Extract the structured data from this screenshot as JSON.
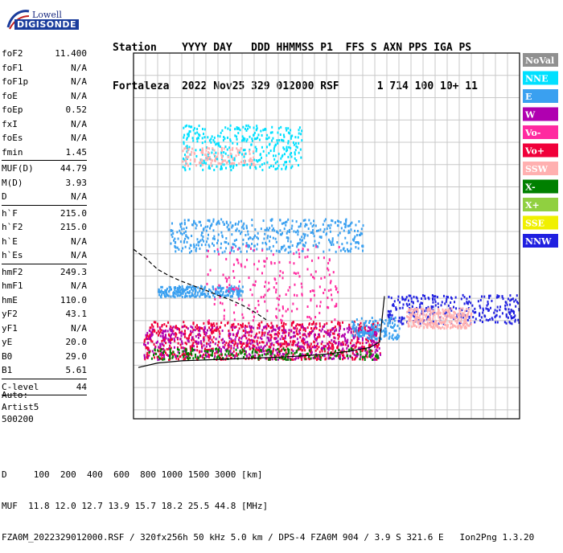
{
  "header": {
    "row1": "Station    YYYY DAY   DDD HHMMSS P1  FFS S AXN PPS IGA PS",
    "row2": "Fortaleza  2022 Nov25 329 012000 RSF      1 714 100 10+ 11"
  },
  "logo": {
    "top": "Lowell",
    "bottom": "DIGISONDE"
  },
  "params": [
    {
      "label": "foF2",
      "value": "11.400"
    },
    {
      "label": "foF1",
      "value": "N/A"
    },
    {
      "label": "foF1p",
      "value": "N/A"
    },
    {
      "label": "foE",
      "value": "N/A"
    },
    {
      "label": "foEp",
      "value": "0.52"
    },
    {
      "label": "fxI",
      "value": "N/A"
    },
    {
      "label": "foEs",
      "value": "N/A"
    },
    {
      "label": "fmin",
      "value": "1.45"
    },
    {
      "sep": true
    },
    {
      "label": "MUF(D)",
      "value": "44.79"
    },
    {
      "label": "M(D)",
      "value": "3.93"
    },
    {
      "label": "D",
      "value": "N/A"
    },
    {
      "sep": true
    },
    {
      "label": "h`F",
      "value": "215.0"
    },
    {
      "label": "h`F2",
      "value": "215.0"
    },
    {
      "label": "h`E",
      "value": "N/A"
    },
    {
      "label": "h`Es",
      "value": "N/A"
    },
    {
      "sep": true
    },
    {
      "label": "hmF2",
      "value": "249.3"
    },
    {
      "label": "hmF1",
      "value": "N/A"
    },
    {
      "label": "hmE",
      "value": "110.0"
    },
    {
      "label": "yF2",
      "value": "43.1"
    },
    {
      "label": "yF1",
      "value": "N/A"
    },
    {
      "label": "yE",
      "value": "20.0"
    },
    {
      "label": "B0",
      "value": "29.0"
    },
    {
      "label": "B1",
      "value": "5.61"
    },
    {
      "sep": true
    },
    {
      "label": "C-level",
      "value": "44"
    },
    {
      "sep": true
    }
  ],
  "auto": {
    "line1": "Auto:",
    "line2": "Artist5",
    "line3": "500200"
  },
  "footer": {
    "line1": "D     100  200  400  600  800 1000 1500 3000 [km]",
    "line2": "MUF  11.8 12.0 12.7 13.9 15.7 18.2 25.5 44.8 [MHz]",
    "line3": "FZA0M_2022329012000.RSF / 320fx256h 50 kHz 5.0 km / DPS-4 FZA0M 904 / 3.9 S 321.6 E   Ion2Png 1.3.20"
  },
  "chart_data": {
    "type": "scatter",
    "title": "",
    "xlabel": "",
    "ylabel": "",
    "xlim": [
      1,
      17
    ],
    "ylim": [
      80,
      900
    ],
    "xticks": [
      1,
      2,
      3,
      4,
      5,
      6,
      7,
      8,
      9,
      10,
      11,
      12,
      13,
      14,
      15,
      16,
      17
    ],
    "yticks": [
      80,
      200,
      300,
      400,
      500,
      600,
      700,
      800,
      900
    ],
    "grid": true,
    "legend_position": "right",
    "legend": [
      {
        "name": "NoVal",
        "color": "#909090"
      },
      {
        "name": "NNE",
        "color": "#00e0ff"
      },
      {
        "name": "E",
        "color": "#3aa0f0"
      },
      {
        "name": "W",
        "color": "#b000b0"
      },
      {
        "name": "Vo-",
        "color": "#ff2aa0"
      },
      {
        "name": "Vo+",
        "color": "#f0003a"
      },
      {
        "name": "SSW",
        "color": "#ffb0b0"
      },
      {
        "name": "X-",
        "color": "#008000"
      },
      {
        "name": "X+",
        "color": "#90d040"
      },
      {
        "name": "SSE",
        "color": "#f0f000"
      },
      {
        "name": "NNW",
        "color": "#2020e0"
      }
    ],
    "profile_curve": {
      "x": [
        1.2,
        2.0,
        3.0,
        4.0,
        5.0,
        6.0,
        7.0,
        8.0,
        9.0,
        10.0,
        10.8,
        11.2,
        11.4
      ],
      "y": [
        195,
        205,
        210,
        212,
        214,
        216,
        218,
        221,
        225,
        232,
        240,
        252,
        355
      ]
    },
    "muf_curve": {
      "x": [
        1.0,
        1.5,
        2.0,
        2.5,
        3.0,
        3.5,
        4.0,
        4.5,
        5.0,
        5.5,
        6.0,
        6.5
      ],
      "y": [
        460,
        440,
        415,
        400,
        388,
        378,
        368,
        357,
        347,
        335,
        320,
        302
      ]
    },
    "series": [
      {
        "name": "Vo+",
        "color": "#f0003a",
        "x_range": [
          1.4,
          11.2
        ],
        "y_range": [
          215,
          300
        ],
        "density": 900
      },
      {
        "name": "W",
        "color": "#b000b0",
        "x_range": [
          1.4,
          11.2
        ],
        "y_range": [
          215,
          290
        ],
        "density": 500
      },
      {
        "name": "X-",
        "color": "#008000",
        "x_range": [
          1.6,
          11.3
        ],
        "y_range": [
          215,
          240
        ],
        "density": 200
      },
      {
        "name": "E",
        "color": "#3aa0f0",
        "x_range": [
          2.5,
          10.5
        ],
        "y_range": [
          455,
          530
        ],
        "density": 450
      },
      {
        "name": "E",
        "color": "#3aa0f0",
        "x_range": [
          2.0,
          5.5
        ],
        "y_range": [
          355,
          380
        ],
        "density": 250
      },
      {
        "name": "NNE",
        "color": "#00e0ff",
        "x_range": [
          3.0,
          8.0
        ],
        "y_range": [
          640,
          740
        ],
        "density": 350
      },
      {
        "name": "SSW",
        "color": "#ffb0b0",
        "x_range": [
          3.0,
          6.0
        ],
        "y_range": [
          650,
          690
        ],
        "density": 120
      },
      {
        "name": "NNW",
        "color": "#2020e0",
        "x_range": [
          11.5,
          17.0
        ],
        "y_range": [
          295,
          360
        ],
        "density": 300
      },
      {
        "name": "SSW",
        "color": "#ffb0b0",
        "x_range": [
          12.3,
          15.0
        ],
        "y_range": [
          285,
          330
        ],
        "density": 300
      },
      {
        "name": "E",
        "color": "#3aa0f0",
        "x_range": [
          10.0,
          12.0
        ],
        "y_range": [
          260,
          310
        ],
        "density": 150
      },
      {
        "name": "Vo-",
        "color": "#ff2aa0",
        "x_range": [
          4.0,
          9.5
        ],
        "y_range": [
          300,
          470
        ],
        "density": 200
      }
    ]
  }
}
